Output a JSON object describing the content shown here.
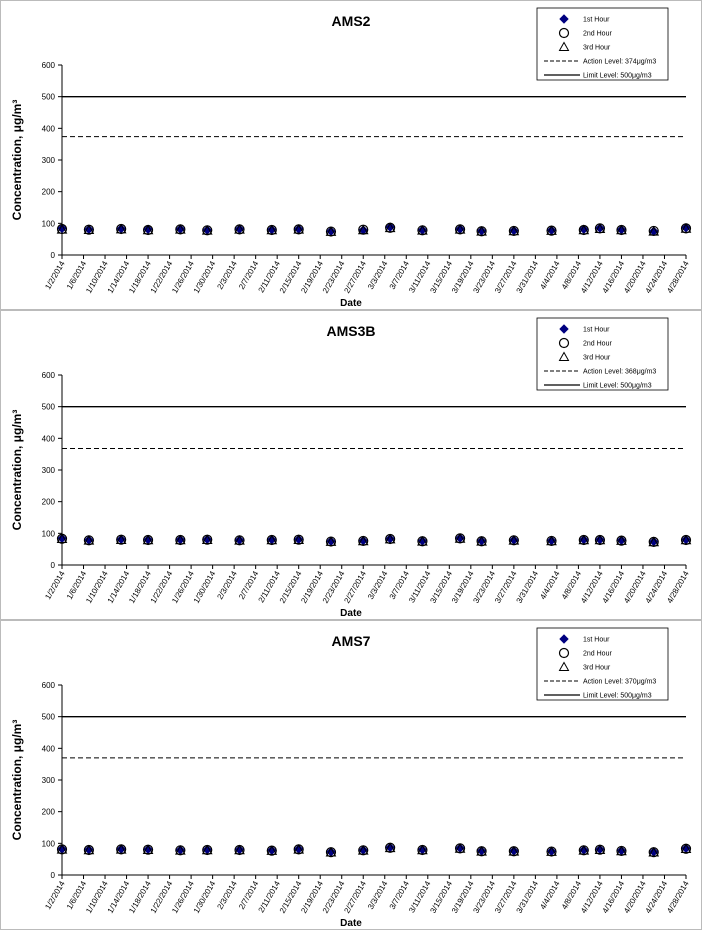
{
  "chart_data": [
    {
      "type": "scatter",
      "title": "AMS2",
      "x_label": "Date",
      "y_label": "Concentration, μg/m³",
      "x": [
        "1/2/2014",
        "1/7/2014",
        "1/13/2014",
        "1/18/2014",
        "1/24/2014",
        "1/29/2014",
        "2/4/2014",
        "2/10/2014",
        "2/15/2014",
        "2/21/2014",
        "2/27/2014",
        "3/4/2014",
        "3/10/2014",
        "3/17/2014",
        "3/21/2014",
        "3/27/2014",
        "4/3/2014",
        "4/9/2014",
        "4/12/2014",
        "4/16/2014",
        "4/22/2014",
        "4/28/2014"
      ],
      "series": [
        {
          "name": "1st Hour",
          "color": "#000080",
          "marker": "diamond",
          "values": [
            84,
            81,
            83,
            81,
            82,
            79,
            82,
            80,
            82,
            75,
            79,
            88,
            79,
            82,
            76,
            77,
            78,
            81,
            85,
            80,
            75,
            86
          ]
        },
        {
          "name": "2nd Hour",
          "color": "#000000",
          "marker": "circle",
          "values": [
            82,
            80,
            82,
            79,
            81,
            78,
            81,
            79,
            81,
            74,
            80,
            86,
            78,
            81,
            75,
            76,
            77,
            79,
            84,
            79,
            76,
            84
          ]
        },
        {
          "name": "3rd Hour",
          "color": "#000000",
          "marker": "triangle",
          "values": [
            80,
            79,
            81,
            78,
            80,
            77,
            80,
            78,
            80,
            73,
            78,
            85,
            77,
            80,
            74,
            75,
            76,
            78,
            82,
            78,
            74,
            83
          ]
        }
      ],
      "reference_lines": [
        {
          "name": "Action Level: 374μg/m3",
          "value": 374,
          "style": "dashed"
        },
        {
          "name": "Limit Level: 500μg/m3",
          "value": 500,
          "style": "solid"
        }
      ],
      "xlim": [
        "1/2/2014",
        "4/28/2014"
      ],
      "xticks": [
        "1/2/2014",
        "1/6/2014",
        "1/10/2014",
        "1/14/2014",
        "1/18/2014",
        "1/22/2014",
        "1/26/2014",
        "1/30/2014",
        "2/3/2014",
        "2/7/2014",
        "2/11/2014",
        "2/15/2014",
        "2/19/2014",
        "2/23/2014",
        "2/27/2014",
        "3/3/2014",
        "3/7/2014",
        "3/11/2014",
        "3/15/2014",
        "3/19/2014",
        "3/23/2014",
        "3/27/2014",
        "3/31/2014",
        "4/4/2014",
        "4/8/2014",
        "4/12/2014",
        "4/16/2014",
        "4/20/2014",
        "4/24/2014",
        "4/28/2014"
      ],
      "ylim": [
        0,
        600
      ],
      "yticks": [
        0,
        100,
        200,
        300,
        400,
        500,
        600
      ],
      "grid": false,
      "legend": "upper right"
    },
    {
      "type": "scatter",
      "title": "AMS3B",
      "x_label": "Date",
      "y_label": "Concentration, μg/m³",
      "x": [
        "1/2/2014",
        "1/7/2014",
        "1/13/2014",
        "1/18/2014",
        "1/24/2014",
        "1/29/2014",
        "2/4/2014",
        "2/10/2014",
        "2/15/2014",
        "2/21/2014",
        "2/27/2014",
        "3/4/2014",
        "3/10/2014",
        "3/17/2014",
        "3/21/2014",
        "3/27/2014",
        "4/3/2014",
        "4/9/2014",
        "4/12/2014",
        "4/16/2014",
        "4/22/2014",
        "4/28/2014"
      ],
      "series": [
        {
          "name": "1st Hour",
          "color": "#000080",
          "marker": "diamond",
          "values": [
            84,
            79,
            81,
            80,
            80,
            81,
            79,
            80,
            81,
            75,
            77,
            83,
            76,
            85,
            76,
            79,
            77,
            80,
            80,
            78,
            74,
            80
          ]
        },
        {
          "name": "2nd Hour",
          "color": "#000000",
          "marker": "circle",
          "values": [
            83,
            78,
            80,
            79,
            79,
            80,
            78,
            79,
            80,
            74,
            76,
            82,
            75,
            84,
            75,
            78,
            76,
            79,
            79,
            77,
            73,
            79
          ]
        },
        {
          "name": "3rd Hour",
          "color": "#000000",
          "marker": "triangle",
          "values": [
            82,
            77,
            79,
            78,
            78,
            79,
            77,
            78,
            79,
            73,
            75,
            81,
            74,
            83,
            74,
            77,
            75,
            78,
            78,
            76,
            72,
            78
          ]
        }
      ],
      "reference_lines": [
        {
          "name": "Action Level: 368μg/m3",
          "value": 368,
          "style": "dashed"
        },
        {
          "name": "Limit Level: 500μg/m3",
          "value": 500,
          "style": "solid"
        }
      ],
      "xlim": [
        "1/2/2014",
        "4/28/2014"
      ],
      "xticks": [
        "1/2/2014",
        "1/6/2014",
        "1/10/2014",
        "1/14/2014",
        "1/18/2014",
        "1/22/2014",
        "1/26/2014",
        "1/30/2014",
        "2/3/2014",
        "2/7/2014",
        "2/11/2014",
        "2/15/2014",
        "2/19/2014",
        "2/23/2014",
        "2/27/2014",
        "3/3/2014",
        "3/7/2014",
        "3/11/2014",
        "3/15/2014",
        "3/19/2014",
        "3/23/2014",
        "3/27/2014",
        "3/31/2014",
        "4/4/2014",
        "4/8/2014",
        "4/12/2014",
        "4/16/2014",
        "4/20/2014",
        "4/24/2014",
        "4/28/2014"
      ],
      "ylim": [
        0,
        600
      ],
      "yticks": [
        0,
        100,
        200,
        300,
        400,
        500,
        600
      ],
      "grid": false,
      "legend": "upper right"
    },
    {
      "type": "scatter",
      "title": "AMS7",
      "x_label": "Date",
      "y_label": "Concentration, μg/m³",
      "x": [
        "1/2/2014",
        "1/7/2014",
        "1/13/2014",
        "1/18/2014",
        "1/24/2014",
        "1/29/2014",
        "2/4/2014",
        "2/10/2014",
        "2/15/2014",
        "2/21/2014",
        "2/27/2014",
        "3/4/2014",
        "3/10/2014",
        "3/17/2014",
        "3/21/2014",
        "3/27/2014",
        "4/3/2014",
        "4/9/2014",
        "4/12/2014",
        "4/16/2014",
        "4/22/2014",
        "4/28/2014"
      ],
      "series": [
        {
          "name": "1st Hour",
          "color": "#000080",
          "marker": "diamond",
          "values": [
            82,
            80,
            82,
            81,
            79,
            80,
            80,
            78,
            82,
            73,
            79,
            87,
            80,
            85,
            76,
            76,
            75,
            79,
            81,
            77,
            73,
            84
          ]
        },
        {
          "name": "2nd Hour",
          "color": "#000000",
          "marker": "circle",
          "values": [
            81,
            79,
            81,
            80,
            78,
            79,
            79,
            77,
            81,
            72,
            78,
            86,
            79,
            84,
            75,
            75,
            74,
            78,
            80,
            76,
            72,
            83
          ]
        },
        {
          "name": "3rd Hour",
          "color": "#000000",
          "marker": "triangle",
          "values": [
            80,
            78,
            80,
            79,
            77,
            78,
            78,
            76,
            80,
            71,
            77,
            85,
            78,
            83,
            74,
            74,
            73,
            77,
            79,
            75,
            71,
            82
          ]
        }
      ],
      "reference_lines": [
        {
          "name": "Action Level: 370μg/m3",
          "value": 370,
          "style": "dashed"
        },
        {
          "name": "Limit Level: 500μg/m3",
          "value": 500,
          "style": "solid"
        }
      ],
      "xlim": [
        "1/2/2014",
        "4/28/2014"
      ],
      "xticks": [
        "1/2/2014",
        "1/6/2014",
        "1/10/2014",
        "1/14/2014",
        "1/18/2014",
        "1/22/2014",
        "1/26/2014",
        "1/30/2014",
        "2/3/2014",
        "2/7/2014",
        "2/11/2014",
        "2/15/2014",
        "2/19/2014",
        "2/23/2014",
        "2/27/2014",
        "3/3/2014",
        "3/7/2014",
        "3/11/2014",
        "3/15/2014",
        "3/19/2014",
        "3/23/2014",
        "3/27/2014",
        "3/31/2014",
        "4/4/2014",
        "4/8/2014",
        "4/12/2014",
        "4/16/2014",
        "4/20/2014",
        "4/24/2014",
        "4/28/2014"
      ],
      "ylim": [
        0,
        600
      ],
      "yticks": [
        0,
        100,
        200,
        300,
        400,
        500,
        600
      ],
      "grid": false,
      "legend": "upper right"
    }
  ]
}
